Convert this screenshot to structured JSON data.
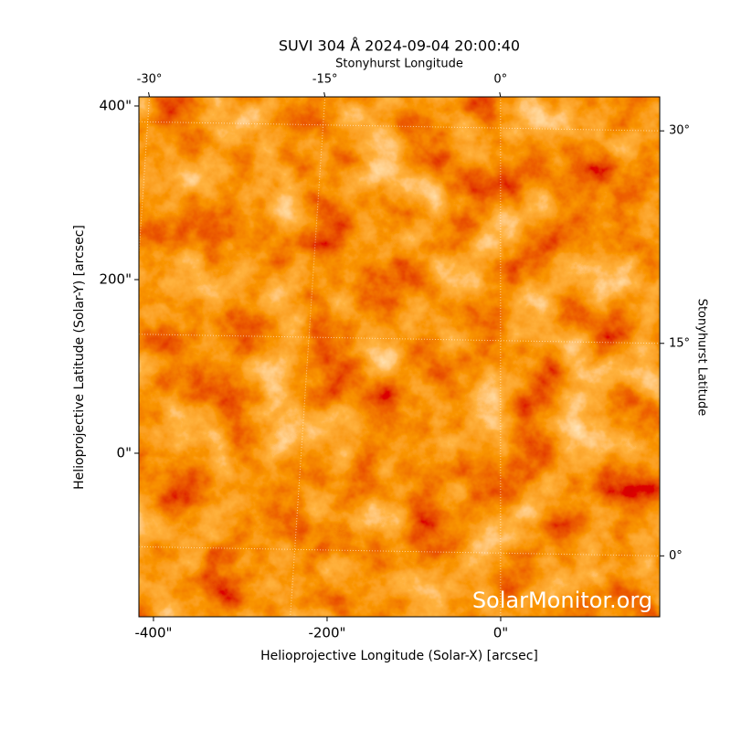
{
  "chart_data": {
    "type": "image",
    "title": "SUVI 304 Å 2024-09-04 20:00:40",
    "xlabel": "Helioprojective Longitude (Solar-X) [arcsec]",
    "ylabel": "Helioprojective Latitude (Solar-Y) [arcsec]",
    "x2label": "Stonyhurst Longitude",
    "y2label": "Stonyhurst Latitude",
    "watermark": "SolarMonitor.org",
    "xlim": [
      -416.8,
      183.2
    ],
    "ylim": [
      -188.4,
      410.5
    ],
    "xticks": [
      {
        "value": -400,
        "label": "-400\""
      },
      {
        "value": -200,
        "label": "-200\""
      },
      {
        "value": 0,
        "label": "0\""
      }
    ],
    "yticks": [
      {
        "value": 0,
        "label": "0\""
      },
      {
        "value": 200,
        "label": "200\""
      },
      {
        "value": 400,
        "label": "400\""
      }
    ],
    "x2lim": [
      -30.9,
      13.6
    ],
    "x2ticks": [
      {
        "value": -30,
        "label": "-30°"
      },
      {
        "value": -15,
        "label": "-15°"
      },
      {
        "value": 0,
        "label": "0°"
      }
    ],
    "y2lim": [
      -4.3,
      32.4
    ],
    "y2ticks": [
      {
        "value": 0,
        "label": "0°"
      },
      {
        "value": 15,
        "label": "15°"
      },
      {
        "value": 30,
        "label": "30°"
      }
    ],
    "grid": true
  }
}
